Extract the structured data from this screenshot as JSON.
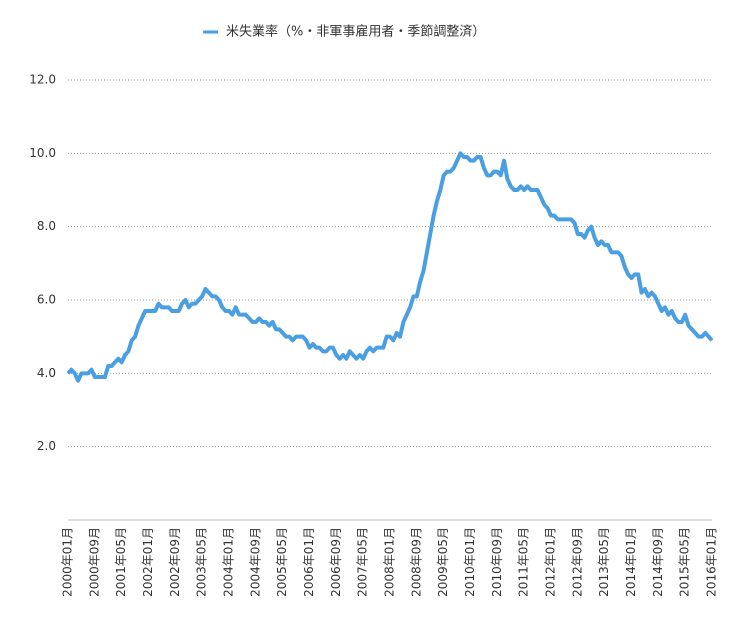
{
  "chart_data": {
    "type": "line",
    "legend_label": "米失業率（%・非軍事雇用者・季節調整済）",
    "categories": [
      "2000年01月",
      null,
      null,
      null,
      null,
      null,
      null,
      null,
      "2000年09月",
      null,
      null,
      null,
      null,
      null,
      null,
      null,
      "2001年05月",
      null,
      null,
      null,
      null,
      null,
      null,
      null,
      "2002年01月",
      null,
      null,
      null,
      null,
      null,
      null,
      null,
      "2002年09月",
      null,
      null,
      null,
      null,
      null,
      null,
      null,
      "2003年05月",
      null,
      null,
      null,
      null,
      null,
      null,
      null,
      "2004年01月",
      null,
      null,
      null,
      null,
      null,
      null,
      null,
      "2004年09月",
      null,
      null,
      null,
      null,
      null,
      null,
      null,
      "2005年05月",
      null,
      null,
      null,
      null,
      null,
      null,
      null,
      "2006年01月",
      null,
      null,
      null,
      null,
      null,
      null,
      null,
      "2006年09月",
      null,
      null,
      null,
      null,
      null,
      null,
      null,
      "2007年05月",
      null,
      null,
      null,
      null,
      null,
      null,
      null,
      "2008年01月",
      null,
      null,
      null,
      null,
      null,
      null,
      null,
      "2008年09月",
      null,
      null,
      null,
      null,
      null,
      null,
      null,
      "2009年05月",
      null,
      null,
      null,
      null,
      null,
      null,
      null,
      "2010年01月",
      null,
      null,
      null,
      null,
      null,
      null,
      null,
      "2010年09月",
      null,
      null,
      null,
      null,
      null,
      null,
      null,
      "2011年05月",
      null,
      null,
      null,
      null,
      null,
      null,
      null,
      "2012年01月",
      null,
      null,
      null,
      null,
      null,
      null,
      null,
      "2012年09月",
      null,
      null,
      null,
      null,
      null,
      null,
      null,
      "2013年05月",
      null,
      null,
      null,
      null,
      null,
      null,
      null,
      "2014年01月",
      null,
      null,
      null,
      null,
      null,
      null,
      null,
      "2014年09月",
      null,
      null,
      null,
      null,
      null,
      null,
      null,
      "2015年05月",
      null,
      null,
      null,
      null,
      null,
      null,
      null,
      "2016年01月"
    ],
    "series": [
      {
        "name": "米失業率（%・非軍事雇用者・季節調整済）",
        "color": "#4a9fe2",
        "values": [
          4.0,
          4.1,
          4.0,
          3.8,
          4.0,
          4.0,
          4.0,
          4.1,
          3.9,
          3.9,
          3.9,
          3.9,
          4.2,
          4.2,
          4.3,
          4.4,
          4.3,
          4.5,
          4.6,
          4.9,
          5.0,
          5.3,
          5.5,
          5.7,
          5.7,
          5.7,
          5.7,
          5.9,
          5.8,
          5.8,
          5.8,
          5.7,
          5.7,
          5.7,
          5.9,
          6.0,
          5.8,
          5.9,
          5.9,
          6.0,
          6.1,
          6.3,
          6.2,
          6.1,
          6.1,
          6.0,
          5.8,
          5.7,
          5.7,
          5.6,
          5.8,
          5.6,
          5.6,
          5.6,
          5.5,
          5.4,
          5.4,
          5.5,
          5.4,
          5.4,
          5.3,
          5.4,
          5.2,
          5.2,
          5.1,
          5.0,
          5.0,
          4.9,
          5.0,
          5.0,
          5.0,
          4.9,
          4.7,
          4.8,
          4.7,
          4.7,
          4.6,
          4.6,
          4.7,
          4.7,
          4.5,
          4.4,
          4.5,
          4.4,
          4.6,
          4.5,
          4.4,
          4.5,
          4.4,
          4.6,
          4.7,
          4.6,
          4.7,
          4.7,
          4.7,
          5.0,
          5.0,
          4.9,
          5.1,
          5.0,
          5.4,
          5.6,
          5.8,
          6.1,
          6.1,
          6.5,
          6.8,
          7.3,
          7.8,
          8.3,
          8.7,
          9.0,
          9.4,
          9.5,
          9.5,
          9.6,
          9.8,
          10.0,
          9.9,
          9.9,
          9.8,
          9.8,
          9.9,
          9.9,
          9.6,
          9.4,
          9.4,
          9.5,
          9.5,
          9.4,
          9.8,
          9.3,
          9.1,
          9.0,
          9.0,
          9.1,
          9.0,
          9.1,
          9.0,
          9.0,
          9.0,
          8.8,
          8.6,
          8.5,
          8.3,
          8.3,
          8.2,
          8.2,
          8.2,
          8.2,
          8.2,
          8.1,
          7.8,
          7.8,
          7.7,
          7.9,
          8.0,
          7.7,
          7.5,
          7.6,
          7.5,
          7.5,
          7.3,
          7.3,
          7.3,
          7.2,
          6.9,
          6.7,
          6.6,
          6.7,
          6.7,
          6.2,
          6.3,
          6.1,
          6.2,
          6.1,
          5.9,
          5.7,
          5.8,
          5.6,
          5.7,
          5.5,
          5.4,
          5.4,
          5.6,
          5.3,
          5.2,
          5.1,
          5.0,
          5.0,
          5.1,
          5.0,
          4.9
        ]
      }
    ],
    "ylim": [
      0,
      12
    ],
    "yticks": [
      {
        "value": 2,
        "label": "2.0"
      },
      {
        "value": 4,
        "label": "4.0"
      },
      {
        "value": 6,
        "label": "6.0"
      },
      {
        "value": 8,
        "label": "8.0"
      },
      {
        "value": 10,
        "label": "10.0"
      },
      {
        "value": 12,
        "label": "12.0"
      }
    ],
    "grid": true
  }
}
